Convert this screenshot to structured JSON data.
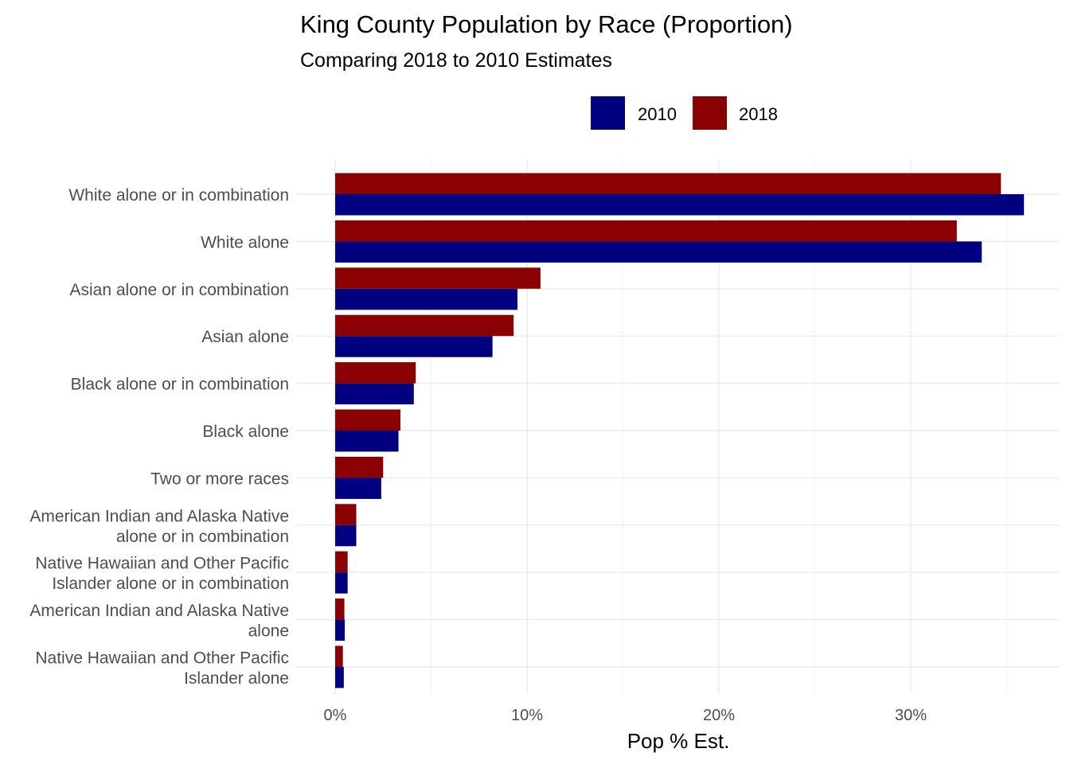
{
  "chart_data": {
    "type": "bar",
    "orientation": "horizontal",
    "title": "King County Population by Race (Proportion)",
    "subtitle": "Comparing 2018 to 2010 Estimates",
    "xlabel": "Pop % Est.",
    "ylabel": "",
    "xlim": [
      0,
      0.375
    ],
    "x_ticks": [
      0,
      0.1,
      0.2,
      0.3
    ],
    "x_tick_labels": [
      "0%",
      "10%",
      "20%",
      "30%"
    ],
    "grid": true,
    "legend_position": "top",
    "categories": [
      [
        "White alone or in combination"
      ],
      [
        "White alone"
      ],
      [
        "Asian alone or in combination"
      ],
      [
        "Asian alone"
      ],
      [
        "Black alone or in combination"
      ],
      [
        "Black alone"
      ],
      [
        "Two or more races"
      ],
      [
        "American Indian and Alaska Native",
        "alone or in combination"
      ],
      [
        "Native Hawaiian and Other Pacific",
        "Islander alone or in combination"
      ],
      [
        "American Indian and Alaska Native",
        "alone"
      ],
      [
        "Native Hawaiian and Other Pacific",
        "Islander alone"
      ]
    ],
    "series": [
      {
        "name": "2010",
        "color": "#000080",
        "values": [
          0.359,
          0.337,
          0.095,
          0.082,
          0.041,
          0.033,
          0.024,
          0.011,
          0.0065,
          0.005,
          0.0045
        ]
      },
      {
        "name": "2018",
        "color": "#8b0000",
        "values": [
          0.347,
          0.324,
          0.107,
          0.093,
          0.042,
          0.034,
          0.025,
          0.011,
          0.0065,
          0.0048,
          0.004
        ]
      }
    ]
  }
}
